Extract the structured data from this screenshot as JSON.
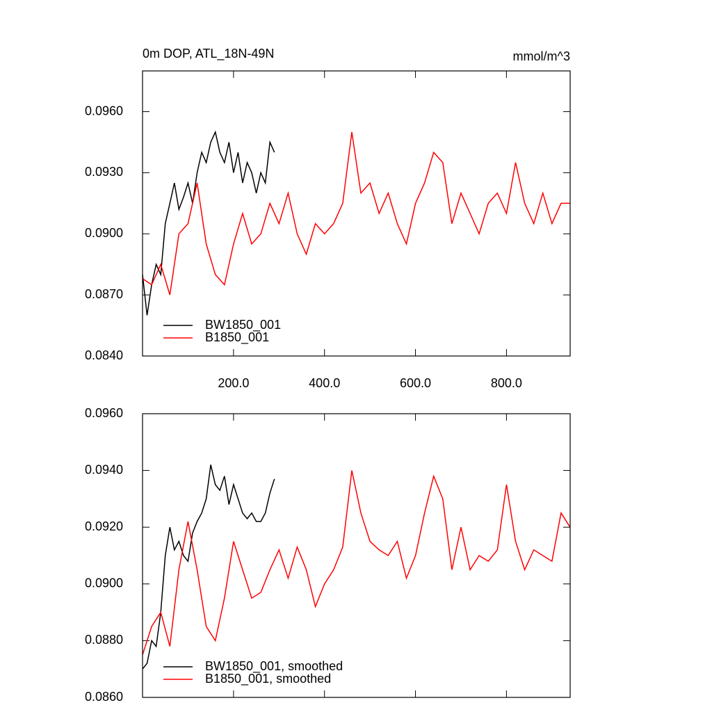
{
  "chart_data": [
    {
      "type": "line",
      "title": "0m DOP, ATL_18N-49N",
      "units": "mmol/m^3",
      "xlim": [
        0,
        940
      ],
      "xticks": [
        {
          "value": 200,
          "label": "200.0"
        },
        {
          "value": 400,
          "label": "400.0"
        },
        {
          "value": 600,
          "label": "600.0"
        },
        {
          "value": 800,
          "label": "800.0"
        }
      ],
      "ylim": [
        0.084,
        0.098
      ],
      "yticks": [
        {
          "value": 0.084,
          "label": "0.0840"
        },
        {
          "value": 0.087,
          "label": "0.0870"
        },
        {
          "value": 0.09,
          "label": "0.0900"
        },
        {
          "value": 0.093,
          "label": "0.0930"
        },
        {
          "value": 0.096,
          "label": "0.0960"
        }
      ],
      "series": [
        {
          "name": "BW1850_001",
          "color": "#000000",
          "x": [
            0,
            10,
            20,
            30,
            40,
            50,
            60,
            70,
            80,
            90,
            100,
            110,
            120,
            130,
            140,
            150,
            160,
            170,
            180,
            190,
            200,
            210,
            220,
            230,
            240,
            250,
            260,
            270,
            280,
            290
          ],
          "values": [
            0.088,
            0.086,
            0.0875,
            0.0885,
            0.088,
            0.0905,
            0.0915,
            0.0925,
            0.0912,
            0.0918,
            0.0925,
            0.0915,
            0.093,
            0.094,
            0.0935,
            0.0945,
            0.095,
            0.094,
            0.0935,
            0.0945,
            0.093,
            0.094,
            0.0925,
            0.0935,
            0.093,
            0.092,
            0.093,
            0.0925,
            0.0945,
            0.094
          ]
        },
        {
          "name": "B1850_001",
          "color": "#ff0000",
          "x": [
            0,
            20,
            40,
            60,
            80,
            100,
            120,
            140,
            160,
            180,
            200,
            220,
            240,
            260,
            280,
            300,
            320,
            340,
            360,
            380,
            400,
            420,
            440,
            460,
            480,
            500,
            520,
            540,
            560,
            580,
            600,
            620,
            640,
            660,
            680,
            700,
            720,
            740,
            760,
            780,
            800,
            820,
            840,
            860,
            880,
            900,
            920,
            940
          ],
          "values": [
            0.0878,
            0.0875,
            0.0885,
            0.087,
            0.09,
            0.0905,
            0.0925,
            0.0895,
            0.088,
            0.0875,
            0.0895,
            0.091,
            0.0895,
            0.09,
            0.0915,
            0.0905,
            0.092,
            0.09,
            0.089,
            0.0905,
            0.09,
            0.0905,
            0.0915,
            0.095,
            0.092,
            0.0925,
            0.091,
            0.092,
            0.0905,
            0.0895,
            0.0915,
            0.0925,
            0.094,
            0.0935,
            0.0905,
            0.092,
            0.091,
            0.09,
            0.0915,
            0.092,
            0.091,
            0.0935,
            0.0915,
            0.0905,
            0.092,
            0.0905,
            0.0915,
            0.0915
          ]
        }
      ]
    },
    {
      "type": "line",
      "xlim": [
        0,
        940
      ],
      "xticks": [
        200,
        400,
        600,
        800
      ],
      "ylim": [
        0.086,
        0.096
      ],
      "yticks": [
        {
          "value": 0.086,
          "label": "0.0860"
        },
        {
          "value": 0.088,
          "label": "0.0880"
        },
        {
          "value": 0.09,
          "label": "0.0900"
        },
        {
          "value": 0.092,
          "label": "0.0920"
        },
        {
          "value": 0.094,
          "label": "0.0940"
        },
        {
          "value": 0.096,
          "label": "0.0960"
        }
      ],
      "series": [
        {
          "name": "BW1850_001, smoothed",
          "color": "#000000",
          "x": [
            0,
            10,
            20,
            30,
            40,
            50,
            60,
            70,
            80,
            90,
            100,
            110,
            120,
            130,
            140,
            150,
            160,
            170,
            180,
            190,
            200,
            210,
            220,
            230,
            240,
            250,
            260,
            270,
            280,
            290
          ],
          "values": [
            0.087,
            0.0872,
            0.088,
            0.0878,
            0.089,
            0.091,
            0.092,
            0.0912,
            0.0915,
            0.091,
            0.0908,
            0.0918,
            0.0922,
            0.0925,
            0.093,
            0.0942,
            0.0935,
            0.0933,
            0.0938,
            0.0928,
            0.0935,
            0.093,
            0.0925,
            0.0923,
            0.0925,
            0.0922,
            0.0922,
            0.0925,
            0.0932,
            0.0937
          ]
        },
        {
          "name": "B1850_001, smoothed",
          "color": "#ff0000",
          "x": [
            0,
            20,
            40,
            60,
            80,
            100,
            120,
            140,
            160,
            180,
            200,
            220,
            240,
            260,
            280,
            300,
            320,
            340,
            360,
            380,
            400,
            420,
            440,
            460,
            480,
            500,
            520,
            540,
            560,
            580,
            600,
            620,
            640,
            660,
            680,
            700,
            720,
            740,
            760,
            780,
            800,
            820,
            840,
            860,
            880,
            900,
            920,
            940
          ],
          "values": [
            0.0875,
            0.0885,
            0.089,
            0.0878,
            0.0905,
            0.0922,
            0.0905,
            0.0885,
            0.088,
            0.0895,
            0.0915,
            0.0905,
            0.0895,
            0.0897,
            0.0905,
            0.0912,
            0.0902,
            0.0913,
            0.0905,
            0.0892,
            0.09,
            0.0905,
            0.0913,
            0.094,
            0.0925,
            0.0915,
            0.0912,
            0.091,
            0.0915,
            0.0902,
            0.091,
            0.0925,
            0.0938,
            0.093,
            0.0905,
            0.092,
            0.0905,
            0.091,
            0.0908,
            0.0912,
            0.0935,
            0.0915,
            0.0905,
            0.0912,
            0.091,
            0.0908,
            0.0925,
            0.092
          ]
        }
      ]
    }
  ]
}
